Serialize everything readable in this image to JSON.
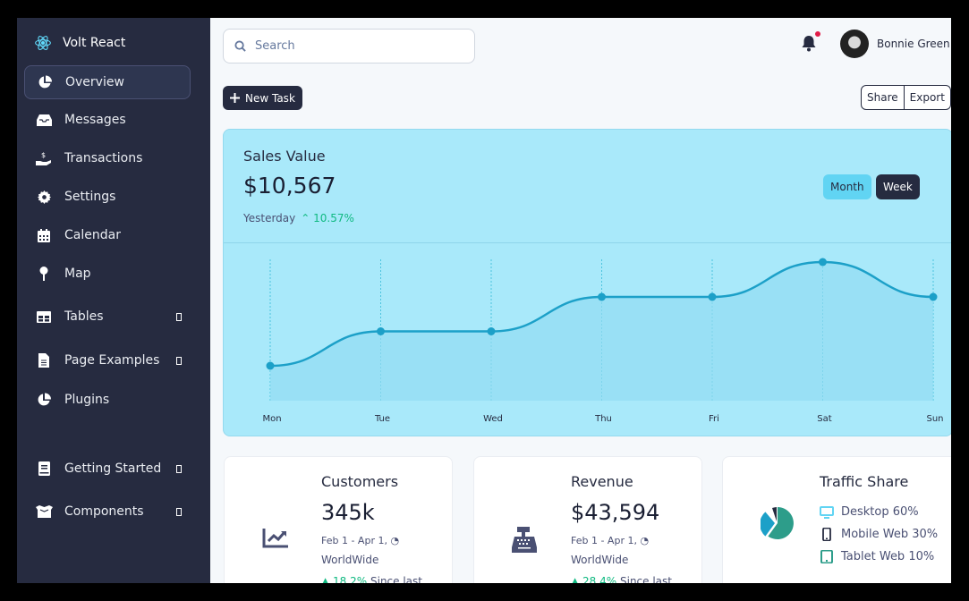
{
  "sidebar": {
    "brand": "Volt React",
    "items": [
      {
        "label": "Overview",
        "icon": "pie-chart-icon",
        "active": true
      },
      {
        "label": "Messages",
        "icon": "inbox-icon"
      },
      {
        "label": "Transactions",
        "icon": "hand-dollar-icon"
      },
      {
        "label": "Settings",
        "icon": "gear-icon"
      },
      {
        "label": "Calendar",
        "icon": "calendar-icon"
      },
      {
        "label": "Map",
        "icon": "map-pin-icon"
      },
      {
        "label": "Tables",
        "icon": "table-icon",
        "expandable": true
      },
      {
        "label": "Page Examples",
        "icon": "file-icon",
        "expandable": true
      },
      {
        "label": "Plugins",
        "icon": "pie-chart-icon"
      },
      {
        "label": "Getting Started",
        "icon": "book-icon",
        "expandable": true
      },
      {
        "label": "Components",
        "icon": "box-open-icon",
        "expandable": true
      }
    ]
  },
  "topbar": {
    "search_placeholder": "Search",
    "user_name": "Bonnie Green",
    "notification_dot": true
  },
  "toolbar": {
    "new_task_label": "New Task",
    "share_label": "Share",
    "export_label": "Export"
  },
  "sales": {
    "title": "Sales Value",
    "value": "$10,567",
    "period_label": "Yesterday",
    "change": "10.57%",
    "toggle_month": "Month",
    "toggle_week": "Week"
  },
  "chart_data": {
    "type": "area",
    "title": "Sales Value",
    "categories": [
      "Mon",
      "Tue",
      "Wed",
      "Thu",
      "Fri",
      "Sat",
      "Sun"
    ],
    "values": [
      1,
      2,
      2,
      3,
      3,
      4,
      3
    ],
    "xlabel": "",
    "ylabel": "",
    "grid": "vertical dotted",
    "legend": "none"
  },
  "cards": {
    "customers": {
      "title": "Customers",
      "value": "345k",
      "range": "Feb 1 - Apr 1,",
      "location": "WorldWide",
      "change": "18.2%",
      "change_suffix": "Since last"
    },
    "revenue": {
      "title": "Revenue",
      "value": "$43,594",
      "range": "Feb 1 - Apr 1,",
      "location": "WorldWide",
      "change": "28.4%",
      "change_suffix": "Since last"
    },
    "traffic": {
      "title": "Traffic Share",
      "items": [
        {
          "label": "Desktop 60%",
          "color": "#61d4f3"
        },
        {
          "label": "Mobile Web 30%",
          "color": "#262b40"
        },
        {
          "label": "Tablet Web 10%",
          "color": "#2d9d8a"
        }
      ]
    }
  }
}
